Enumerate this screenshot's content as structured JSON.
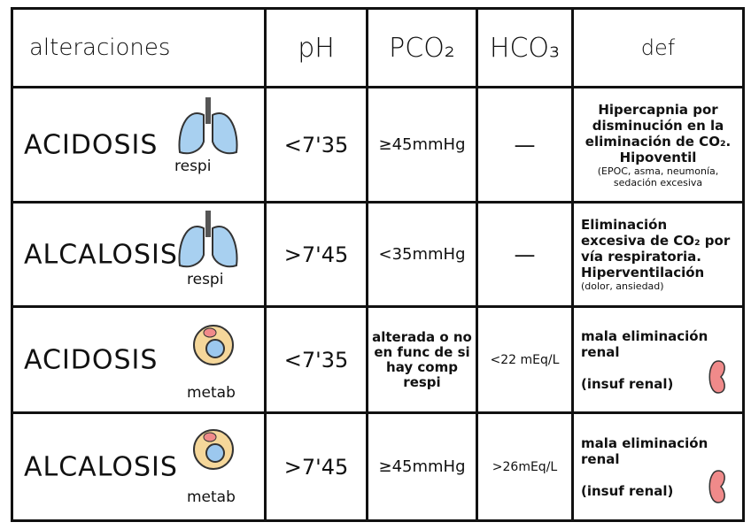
{
  "headers": [
    "alteraciones",
    "pH",
    "PCO₂",
    "HCO₃",
    "def"
  ],
  "rows": [
    {
      "name": "ACIDOSIS",
      "type": "respi",
      "icon": "lungs-icon",
      "ph": "<7'35",
      "pco2": "≥45mmHg",
      "hco3": "—",
      "def": "Hipercapnia por disminución en la eliminación de CO₂. Hipoventil",
      "def_note": "(EPOC, asma, neumonía, sedación excesiva"
    },
    {
      "name": "ALCALOSIS",
      "type": "respi",
      "icon": "lungs-icon",
      "ph": ">7'45",
      "pco2": "<35mmHg",
      "hco3": "—",
      "def": "Eliminación excesiva de CO₂ por vía respiratoria. Hiperventilación",
      "def_note": "(dolor, ansiedad)"
    },
    {
      "name": "ACIDOSIS",
      "type": "metab",
      "icon": "cell-icon",
      "ph": "<7'35",
      "pco2": "alterada o no en func de si hay comp respi",
      "hco3": "<22 mEq/L",
      "def": "mala eliminación renal",
      "def_note": "(insuf renal)"
    },
    {
      "name": "ALCALOSIS",
      "type": "metab",
      "icon": "cell-icon",
      "ph": ">7'45",
      "pco2": "≥45mmHg",
      "hco3": ">26mEq/L",
      "def": "mala eliminación renal",
      "def_note": "(insuf renal)"
    }
  ],
  "colors": {
    "lungs": "#a8d0f0",
    "cell": "#f5d79a",
    "kidney": "#f08a8a"
  }
}
